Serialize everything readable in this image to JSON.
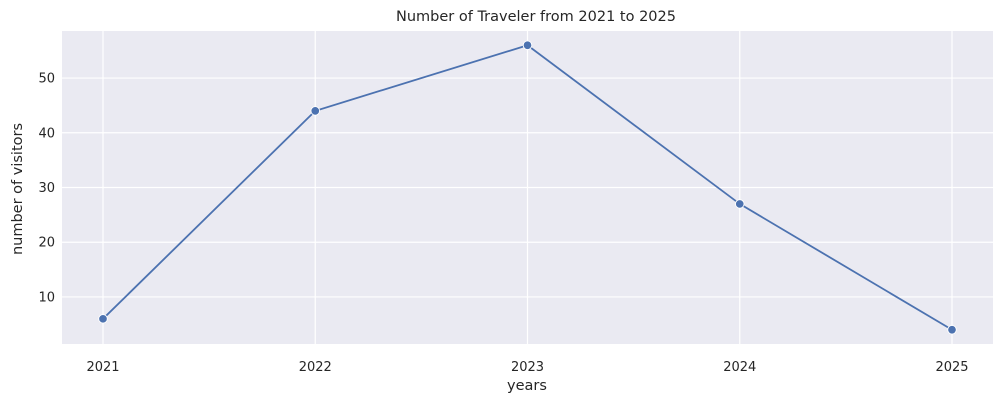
{
  "chart_data": {
    "type": "line",
    "title": "Number of Traveler from 2021 to 2025",
    "xlabel": "years",
    "ylabel": "number of visitors",
    "x": [
      "2021",
      "2022",
      "2023",
      "2024",
      "2025"
    ],
    "series": [
      {
        "values": [
          6,
          44,
          56,
          27,
          4
        ]
      }
    ],
    "ylim": [
      1.4,
      58.6
    ],
    "yticks": [
      10,
      20,
      30,
      40,
      50
    ],
    "grid": true,
    "colors": {
      "line": "#4c72b0",
      "background": "#eaeaf2",
      "grid": "#ffffff"
    }
  }
}
